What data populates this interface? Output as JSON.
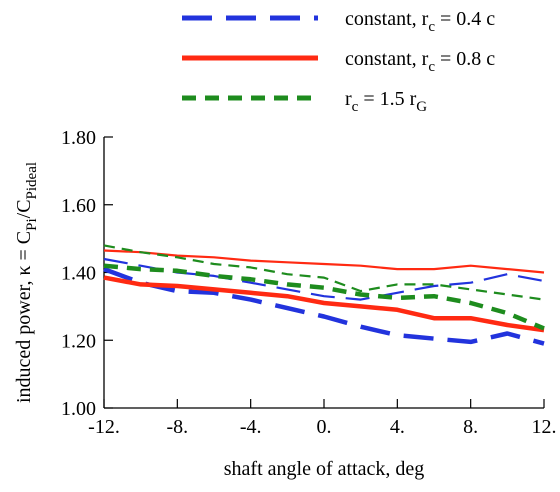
{
  "chart_data": {
    "type": "line",
    "xlabel": "shaft angle of attack, deg",
    "ylabel": "induced power, κ = CPi/CPideal",
    "ylabel_parts": {
      "prefix": "induced power, κ = C",
      "sub1": "Pi",
      "slash": "/C",
      "sub2": "Pideal"
    },
    "xlim": [
      -12,
      12
    ],
    "ylim": [
      1.0,
      1.8
    ],
    "xticks": [
      -12,
      -8,
      -4,
      0,
      4,
      8,
      12
    ],
    "xtick_labels": [
      "-12.",
      "-8.",
      "-4.",
      "0.",
      "4.",
      "8.",
      "12."
    ],
    "yticks": [
      1.0,
      1.2,
      1.4,
      1.6,
      1.8
    ],
    "ytick_labels": [
      "1.00",
      "1.20",
      "1.40",
      "1.60",
      "1.80"
    ],
    "grid": false,
    "legend_position": "top",
    "legend": [
      {
        "base": "constant, r",
        "sub": "c",
        "rest": " = 0.4 c",
        "color": "#2233dd",
        "style": "long-dash"
      },
      {
        "base": "constant, r",
        "sub": "c",
        "rest": " = 0.8 c",
        "color": "#ff2a12",
        "style": "solid"
      },
      {
        "base": "r",
        "sub": "c",
        "rest": " = 1.5 r",
        "sub2": "G",
        "color": "#1e8c1e",
        "style": "short-dash"
      }
    ],
    "x": [
      -12,
      -10,
      -8,
      -6,
      -4,
      -2,
      0,
      2,
      4,
      6,
      8,
      10,
      12
    ],
    "series": [
      {
        "color": "#2233dd",
        "style": "long-dash",
        "weight": "thick",
        "values": [
          1.41,
          1.37,
          1.345,
          1.34,
          1.32,
          1.295,
          1.27,
          1.24,
          1.215,
          1.205,
          1.195,
          1.22,
          1.19
        ]
      },
      {
        "color": "#2233dd",
        "style": "long-dash",
        "weight": "thin",
        "values": [
          1.44,
          1.42,
          1.4,
          1.39,
          1.37,
          1.35,
          1.33,
          1.32,
          1.34,
          1.36,
          1.37,
          1.395,
          1.375
        ]
      },
      {
        "color": "#ff2a12",
        "style": "solid",
        "weight": "thick",
        "values": [
          1.385,
          1.365,
          1.36,
          1.35,
          1.34,
          1.33,
          1.31,
          1.3,
          1.29,
          1.265,
          1.265,
          1.245,
          1.23
        ]
      },
      {
        "color": "#ff2a12",
        "style": "solid",
        "weight": "thin",
        "values": [
          1.465,
          1.46,
          1.45,
          1.445,
          1.435,
          1.43,
          1.425,
          1.42,
          1.41,
          1.41,
          1.42,
          1.41,
          1.4
        ]
      },
      {
        "color": "#1e8c1e",
        "style": "short-dash",
        "weight": "thick",
        "values": [
          1.42,
          1.41,
          1.405,
          1.39,
          1.38,
          1.365,
          1.355,
          1.335,
          1.325,
          1.33,
          1.31,
          1.28,
          1.235
        ]
      },
      {
        "color": "#1e8c1e",
        "style": "short-dash",
        "weight": "thin",
        "values": [
          1.48,
          1.46,
          1.445,
          1.425,
          1.415,
          1.395,
          1.385,
          1.345,
          1.365,
          1.365,
          1.35,
          1.335,
          1.32
        ]
      }
    ]
  }
}
